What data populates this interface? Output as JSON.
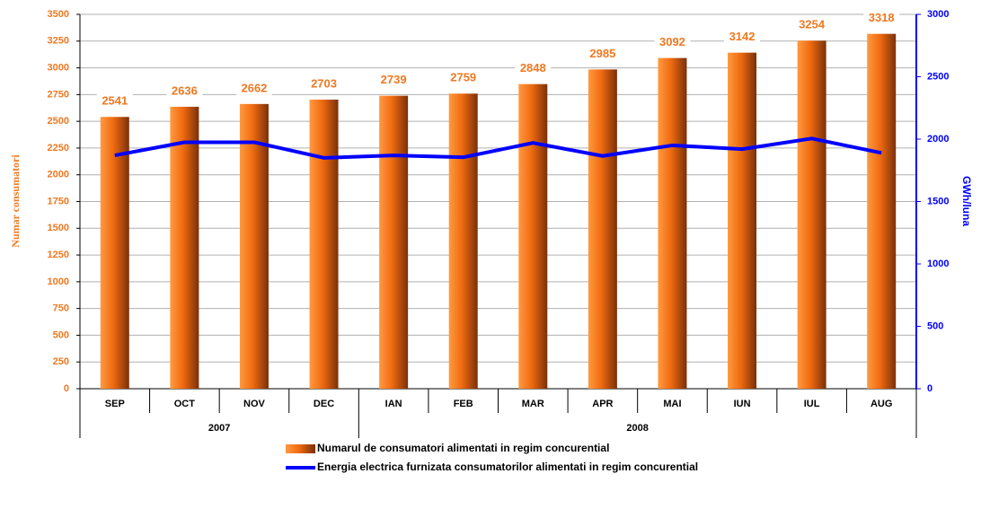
{
  "chart_data": {
    "type": "bar_line",
    "categories": [
      "SEP",
      "OCT",
      "NOV",
      "DEC",
      "IAN",
      "FEB",
      "MAR",
      "APR",
      "MAI",
      "IUN",
      "IUL",
      "AUG"
    ],
    "years": [
      "2007",
      "2007",
      "2007",
      "2007",
      "2008",
      "2008",
      "2008",
      "2008",
      "2008",
      "2008",
      "2008",
      "2008"
    ],
    "y_label": "Numar consumatori",
    "y2_label": "GWh/luna",
    "ylim": [
      0,
      3500
    ],
    "yticks": [
      0,
      250,
      500,
      750,
      1000,
      1250,
      1500,
      1750,
      2000,
      2250,
      2500,
      2750,
      3000,
      3250,
      3500
    ],
    "y2lim": [
      0,
      3000
    ],
    "y2ticks": [
      0,
      500,
      1000,
      1500,
      2000,
      2500,
      3000
    ],
    "grid": true,
    "series": [
      {
        "name": "Numarul de consumatori alimentati in regim concurential",
        "type": "bar",
        "color": "#f07820",
        "values": [
          2541,
          2636,
          2662,
          2703,
          2739,
          2759,
          2848,
          2985,
          3092,
          3142,
          3254,
          3318
        ]
      },
      {
        "name": "Energia electrica furnizata consumatorilor alimentati in regim concurential",
        "type": "line",
        "axis": "y2",
        "color": "#0000ff",
        "values": [
          1870,
          1975,
          1975,
          1850,
          1870,
          1855,
          1970,
          1865,
          1950,
          1920,
          2005,
          1890
        ]
      }
    ]
  }
}
